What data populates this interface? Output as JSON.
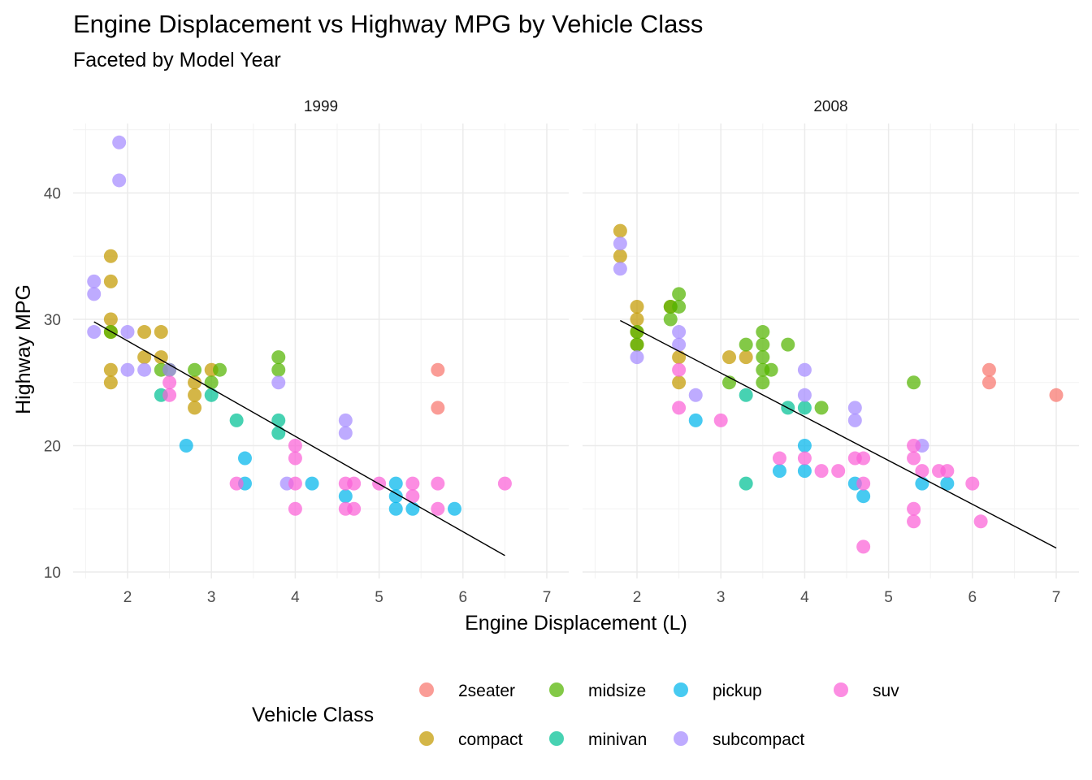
{
  "title": "Engine Displacement vs Highway MPG by Vehicle Class",
  "subtitle": "Faceted by Model Year",
  "chart_data": {
    "type": "scatter",
    "title": "Engine Displacement vs Highway MPG by Vehicle Class",
    "subtitle": "Faceted by Model Year",
    "xlabel": "Engine Displacement (L)",
    "ylabel": "Highway MPG",
    "xlim": [
      1.5,
      7.0
    ],
    "ylim": [
      10,
      45
    ],
    "x_ticks": [
      2,
      3,
      4,
      5,
      6,
      7
    ],
    "y_ticks": [
      10,
      20,
      30,
      40
    ],
    "grid": true,
    "legend_position": "bottom",
    "legend_title": "Vehicle Class",
    "classes": [
      {
        "name": "2seater",
        "color": "#F8766D"
      },
      {
        "name": "compact",
        "color": "#C49A00"
      },
      {
        "name": "midsize",
        "color": "#53B400"
      },
      {
        "name": "minivan",
        "color": "#00C094"
      },
      {
        "name": "pickup",
        "color": "#00B6EB"
      },
      {
        "name": "subcompact",
        "color": "#A58AFF"
      },
      {
        "name": "suv",
        "color": "#FB61D7"
      }
    ],
    "facets": [
      {
        "label": "1999",
        "trend": [
          [
            1.6,
            29.8
          ],
          [
            6.5,
            11.3
          ]
        ],
        "points": [
          [
            5.7,
            26,
            "2seater"
          ],
          [
            5.7,
            23,
            "2seater"
          ],
          [
            1.8,
            29,
            "compact"
          ],
          [
            1.8,
            25,
            "compact"
          ],
          [
            1.8,
            26,
            "compact"
          ],
          [
            1.8,
            30,
            "compact"
          ],
          [
            1.8,
            33,
            "compact"
          ],
          [
            1.8,
            35,
            "compact"
          ],
          [
            2.2,
            29,
            "compact"
          ],
          [
            2.2,
            27,
            "compact"
          ],
          [
            2.4,
            29,
            "compact"
          ],
          [
            2.4,
            27,
            "compact"
          ],
          [
            2.8,
            25,
            "compact"
          ],
          [
            2.8,
            24,
            "compact"
          ],
          [
            2.8,
            23,
            "compact"
          ],
          [
            3.0,
            26,
            "compact"
          ],
          [
            1.8,
            29,
            "midsize"
          ],
          [
            2.4,
            26,
            "midsize"
          ],
          [
            2.5,
            26,
            "midsize"
          ],
          [
            2.8,
            26,
            "midsize"
          ],
          [
            3.0,
            25,
            "midsize"
          ],
          [
            3.1,
            26,
            "midsize"
          ],
          [
            3.8,
            26,
            "midsize"
          ],
          [
            3.8,
            27,
            "midsize"
          ],
          [
            2.4,
            24,
            "minivan"
          ],
          [
            3.0,
            24,
            "minivan"
          ],
          [
            3.3,
            22,
            "minivan"
          ],
          [
            3.8,
            22,
            "minivan"
          ],
          [
            3.8,
            21,
            "minivan"
          ],
          [
            2.7,
            20,
            "pickup"
          ],
          [
            3.4,
            19,
            "pickup"
          ],
          [
            3.4,
            17,
            "pickup"
          ],
          [
            4.2,
            17,
            "pickup"
          ],
          [
            4.6,
            16,
            "pickup"
          ],
          [
            5.2,
            17,
            "pickup"
          ],
          [
            5.2,
            16,
            "pickup"
          ],
          [
            5.2,
            15,
            "pickup"
          ],
          [
            5.4,
            15,
            "pickup"
          ],
          [
            5.9,
            15,
            "pickup"
          ],
          [
            1.6,
            33,
            "subcompact"
          ],
          [
            1.6,
            32,
            "subcompact"
          ],
          [
            1.6,
            29,
            "subcompact"
          ],
          [
            1.9,
            44,
            "subcompact"
          ],
          [
            1.9,
            41,
            "subcompact"
          ],
          [
            2.0,
            29,
            "subcompact"
          ],
          [
            2.0,
            26,
            "subcompact"
          ],
          [
            2.2,
            26,
            "subcompact"
          ],
          [
            2.5,
            26,
            "subcompact"
          ],
          [
            3.8,
            25,
            "subcompact"
          ],
          [
            3.9,
            17,
            "subcompact"
          ],
          [
            4.6,
            22,
            "subcompact"
          ],
          [
            4.6,
            21,
            "subcompact"
          ],
          [
            2.5,
            25,
            "suv"
          ],
          [
            2.5,
            24,
            "suv"
          ],
          [
            3.3,
            17,
            "suv"
          ],
          [
            4.0,
            20,
            "suv"
          ],
          [
            4.0,
            19,
            "suv"
          ],
          [
            4.0,
            17,
            "suv"
          ],
          [
            4.0,
            15,
            "suv"
          ],
          [
            4.6,
            17,
            "suv"
          ],
          [
            4.6,
            15,
            "suv"
          ],
          [
            4.7,
            17,
            "suv"
          ],
          [
            4.7,
            15,
            "suv"
          ],
          [
            5.0,
            17,
            "suv"
          ],
          [
            5.4,
            17,
            "suv"
          ],
          [
            5.4,
            16,
            "suv"
          ],
          [
            5.7,
            17,
            "suv"
          ],
          [
            5.7,
            15,
            "suv"
          ],
          [
            6.5,
            17,
            "suv"
          ]
        ]
      },
      {
        "label": "2008",
        "trend": [
          [
            1.8,
            29.9
          ],
          [
            7.0,
            11.9
          ]
        ],
        "points": [
          [
            6.2,
            26,
            "2seater"
          ],
          [
            6.2,
            25,
            "2seater"
          ],
          [
            7.0,
            24,
            "2seater"
          ],
          [
            1.8,
            37,
            "compact"
          ],
          [
            1.8,
            35,
            "compact"
          ],
          [
            2.0,
            31,
            "compact"
          ],
          [
            2.0,
            30,
            "compact"
          ],
          [
            2.0,
            29,
            "compact"
          ],
          [
            2.0,
            28,
            "compact"
          ],
          [
            2.4,
            31,
            "compact"
          ],
          [
            2.5,
            27,
            "compact"
          ],
          [
            2.5,
            25,
            "compact"
          ],
          [
            3.1,
            27,
            "compact"
          ],
          [
            3.3,
            27,
            "compact"
          ],
          [
            2.0,
            29,
            "midsize"
          ],
          [
            2.0,
            28,
            "midsize"
          ],
          [
            2.4,
            31,
            "midsize"
          ],
          [
            2.4,
            30,
            "midsize"
          ],
          [
            2.5,
            32,
            "midsize"
          ],
          [
            2.5,
            31,
            "midsize"
          ],
          [
            3.1,
            25,
            "midsize"
          ],
          [
            3.3,
            28,
            "midsize"
          ],
          [
            3.5,
            29,
            "midsize"
          ],
          [
            3.5,
            28,
            "midsize"
          ],
          [
            3.5,
            27,
            "midsize"
          ],
          [
            3.5,
            26,
            "midsize"
          ],
          [
            3.5,
            25,
            "midsize"
          ],
          [
            3.6,
            26,
            "midsize"
          ],
          [
            3.8,
            28,
            "midsize"
          ],
          [
            4.2,
            23,
            "midsize"
          ],
          [
            5.3,
            25,
            "midsize"
          ],
          [
            3.3,
            24,
            "minivan"
          ],
          [
            3.3,
            17,
            "minivan"
          ],
          [
            3.8,
            23,
            "minivan"
          ],
          [
            4.0,
            23,
            "minivan"
          ],
          [
            2.7,
            22,
            "pickup"
          ],
          [
            3.7,
            18,
            "pickup"
          ],
          [
            4.0,
            20,
            "pickup"
          ],
          [
            4.0,
            18,
            "pickup"
          ],
          [
            4.6,
            17,
            "pickup"
          ],
          [
            4.7,
            16,
            "pickup"
          ],
          [
            5.4,
            17,
            "pickup"
          ],
          [
            5.7,
            17,
            "pickup"
          ],
          [
            1.8,
            36,
            "subcompact"
          ],
          [
            1.8,
            34,
            "subcompact"
          ],
          [
            2.0,
            27,
            "subcompact"
          ],
          [
            2.5,
            29,
            "subcompact"
          ],
          [
            2.5,
            28,
            "subcompact"
          ],
          [
            2.7,
            24,
            "subcompact"
          ],
          [
            4.0,
            26,
            "subcompact"
          ],
          [
            4.0,
            24,
            "subcompact"
          ],
          [
            4.6,
            23,
            "subcompact"
          ],
          [
            4.6,
            22,
            "subcompact"
          ],
          [
            5.4,
            20,
            "subcompact"
          ],
          [
            2.5,
            26,
            "suv"
          ],
          [
            2.5,
            23,
            "suv"
          ],
          [
            3.0,
            22,
            "suv"
          ],
          [
            3.7,
            19,
            "suv"
          ],
          [
            4.0,
            19,
            "suv"
          ],
          [
            4.2,
            18,
            "suv"
          ],
          [
            4.4,
            18,
            "suv"
          ],
          [
            4.6,
            19,
            "suv"
          ],
          [
            4.7,
            19,
            "suv"
          ],
          [
            4.7,
            17,
            "suv"
          ],
          [
            4.7,
            12,
            "suv"
          ],
          [
            5.3,
            20,
            "suv"
          ],
          [
            5.3,
            19,
            "suv"
          ],
          [
            5.3,
            15,
            "suv"
          ],
          [
            5.3,
            14,
            "suv"
          ],
          [
            5.4,
            18,
            "suv"
          ],
          [
            5.6,
            18,
            "suv"
          ],
          [
            5.7,
            18,
            "suv"
          ],
          [
            6.0,
            17,
            "suv"
          ],
          [
            6.1,
            14,
            "suv"
          ]
        ]
      }
    ]
  }
}
